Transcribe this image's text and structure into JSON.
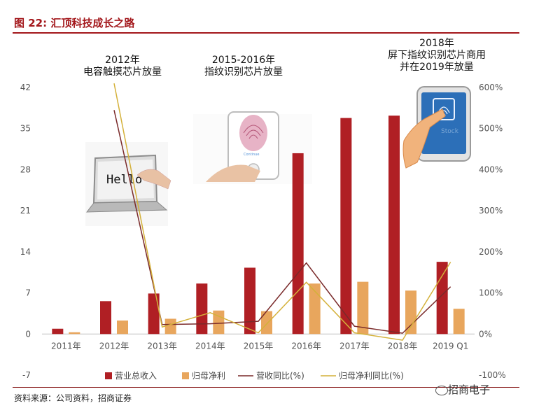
{
  "figure": {
    "title": "图 22:  汇顶科技成长之路",
    "source": "资料来源：公司资料，招商证券",
    "watermark": "招商电子"
  },
  "annotations": [
    {
      "lines": [
        "2012年",
        "电容触摸芯片放量"
      ]
    },
    {
      "lines": [
        "2015-2016年",
        "指纹识别芯片放量"
      ]
    },
    {
      "lines": [
        "2018年",
        "屏下指纹识别芯片商用",
        "并在2019年放量"
      ]
    }
  ],
  "illustrations": {
    "laptop_text": "Hello",
    "phone_button_text": "Continue",
    "stock_text": "Stock"
  },
  "chart_data": {
    "type": "bar",
    "categories": [
      "2011年",
      "2012年",
      "2013年",
      "2014年",
      "2015年",
      "2016年",
      "2017年",
      "2018年",
      "2019 Q1"
    ],
    "series": [
      {
        "name": "营业总收入",
        "kind": "bar",
        "axis": "left",
        "color": "#b01f24",
        "values": [
          0.9,
          5.6,
          6.9,
          8.6,
          11.3,
          30.8,
          36.8,
          37.2,
          12.3
        ]
      },
      {
        "name": "归母净利",
        "kind": "bar",
        "axis": "left",
        "color": "#e8a65d",
        "values": [
          0.3,
          2.3,
          2.6,
          4.0,
          3.9,
          8.6,
          8.9,
          7.4,
          4.3
        ]
      },
      {
        "name": "营收同比(%)",
        "kind": "line",
        "axis": "right",
        "color": "#7a2a2a",
        "values": [
          null,
          545,
          23,
          25,
          31,
          173,
          19,
          2,
          115
        ]
      },
      {
        "name": "归母净利同比(%)",
        "kind": "line",
        "axis": "right",
        "color": "#d4b13a",
        "values": [
          null,
          610,
          17,
          52,
          3,
          126,
          3,
          -15,
          175
        ]
      }
    ],
    "yleft": {
      "min": -7,
      "max": 42,
      "ticks": [
        -7,
        0,
        7,
        14,
        21,
        28,
        35,
        42
      ]
    },
    "yright": {
      "min": -100,
      "max": 600,
      "ticks": [
        "-100%",
        "0%",
        "100%",
        "200%",
        "300%",
        "400%",
        "500%",
        "600%"
      ],
      "tick_values": [
        -100,
        0,
        100,
        200,
        300,
        400,
        500,
        600
      ]
    },
    "legend_position": "bottom",
    "grid": false
  }
}
